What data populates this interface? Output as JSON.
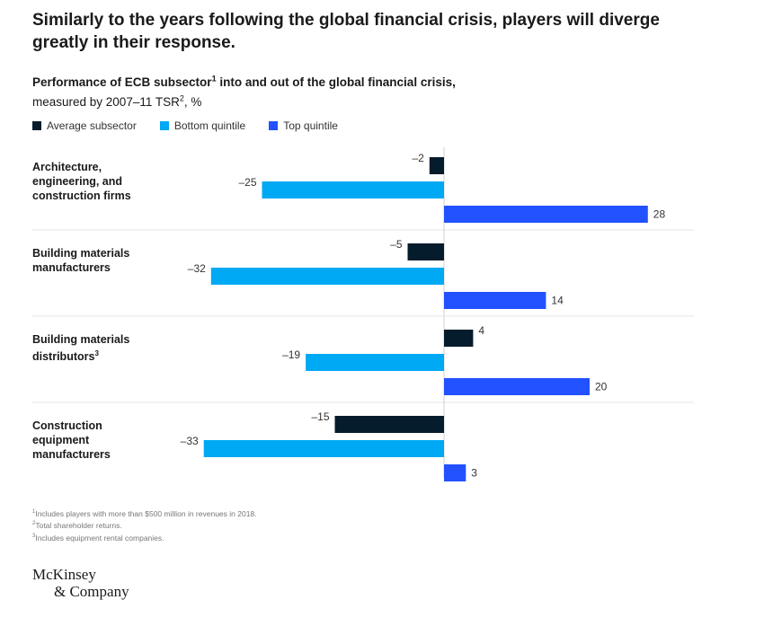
{
  "headline": "Similarly to the years following the global financial crisis, players will diverge greatly in their response.",
  "subtitle": {
    "bold_part": "Performance of ECB subsector",
    "bold_sup": "1",
    "bold_rest": " into and out of the global financial crisis,",
    "line2": "measured by 2007–11 TSR",
    "line2_sup": "2",
    "line2_rest": ", %"
  },
  "colors": {
    "average": "#051c2c",
    "bottom": "#00a9f4",
    "top": "#2251ff",
    "divider": "#e6e6e6",
    "axis": "#d0d0d0"
  },
  "chart_data": {
    "type": "bar",
    "orientation": "horizontal",
    "categories": [
      "Architecture, engineering, and construction firms",
      "Building materials manufacturers",
      "Building materials distributors",
      "Construction equipment manufacturers"
    ],
    "category_label_lines": [
      [
        "Architecture,",
        "engineering, and",
        "construction firms"
      ],
      [
        "Building materials",
        "manufacturers"
      ],
      [
        "Building materials",
        "distributors"
      ],
      [
        "Construction",
        "equipment",
        "manufacturers"
      ]
    ],
    "category_sups": [
      "",
      "",
      "3",
      ""
    ],
    "series": [
      {
        "name": "Average subsector",
        "values": [
          -2,
          -5,
          4,
          -15
        ]
      },
      {
        "name": "Bottom quintile",
        "values": [
          -25,
          -32,
          -19,
          -33
        ]
      },
      {
        "name": "Top quintile",
        "values": [
          28,
          14,
          20,
          3
        ]
      }
    ],
    "value_labels": [
      [
        "–2",
        "–5",
        "4",
        "–15"
      ],
      [
        "–25",
        "–32",
        "–19",
        "–33"
      ],
      [
        "28",
        "14",
        "20",
        "3"
      ]
    ],
    "legend_position": "top-left",
    "grid": false
  },
  "footnotes": [
    {
      "sup": "1",
      "text": "Includes players with more than $500 million in revenues in 2018."
    },
    {
      "sup": "2",
      "text": "Total shareholder returns."
    },
    {
      "sup": "3",
      "text": "Includes equipment rental companies."
    }
  ],
  "logo": {
    "line1": "McKinsey",
    "line2": "& Company"
  }
}
